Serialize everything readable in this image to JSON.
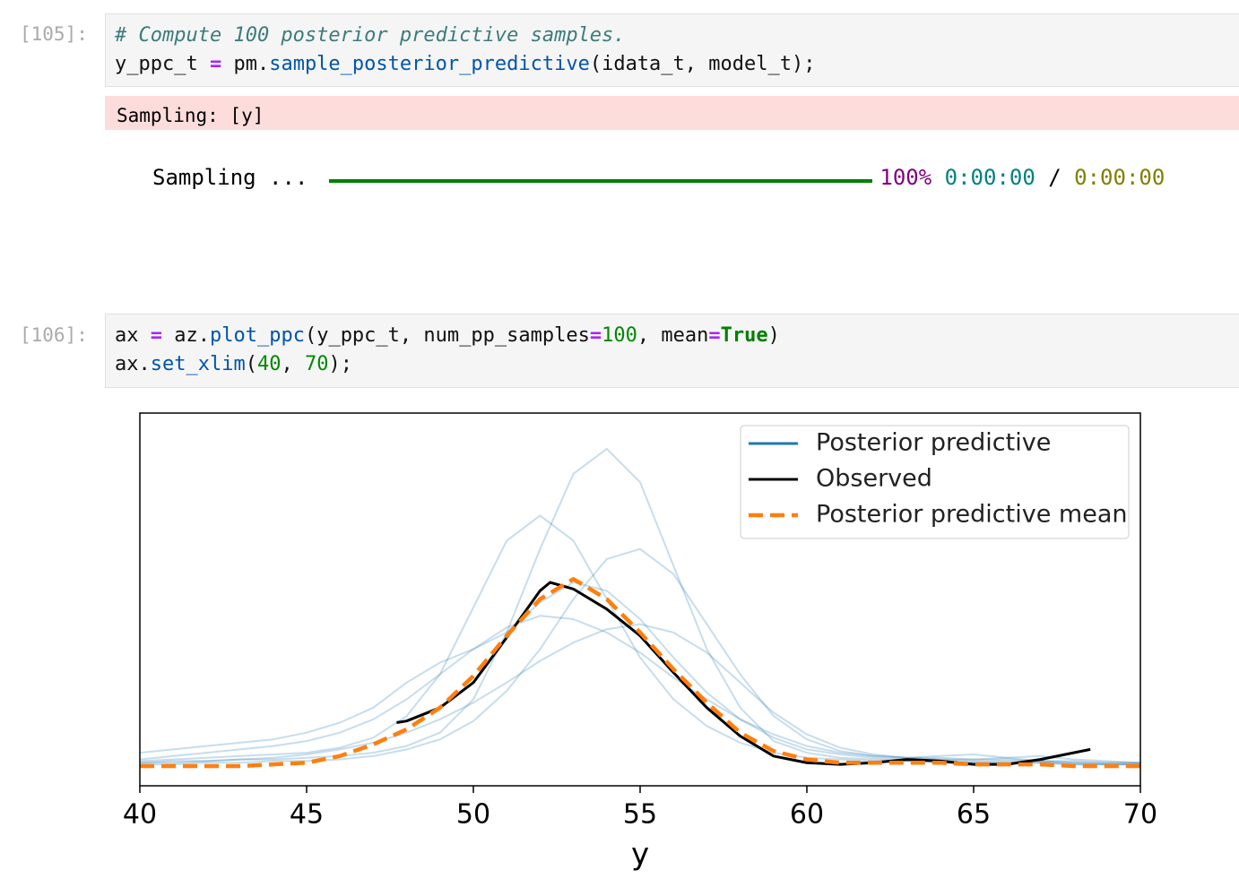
{
  "cells": [
    {
      "prompt": "[105]:",
      "code": [
        [
          "# Compute 100 posterior predictive samples."
        ],
        [
          "y_ppc_t ",
          "=",
          " pm.",
          "sample_posterior_predictive",
          "(idata_t, model_t);"
        ]
      ],
      "stderr": "Sampling: [y]",
      "progress": {
        "label": "Sampling ...",
        "percent": "100%",
        "elapsed": "0:00:00",
        "separator": "/",
        "remaining": "0:00:00"
      }
    },
    {
      "prompt": "[106]:",
      "code": [
        [
          "ax ",
          "=",
          " az.",
          "plot_ppc",
          "(y_ppc_t, num_pp_samples",
          "=",
          "100",
          ", mean",
          "=",
          "True",
          ")"
        ],
        [
          "ax.",
          "set_xlim",
          "(",
          "40",
          ", ",
          "70",
          ");"
        ]
      ]
    }
  ],
  "chart_data": {
    "type": "line",
    "xlabel": "y",
    "xlim": [
      40,
      70
    ],
    "xticks": [
      40,
      45,
      50,
      55,
      60,
      65,
      70
    ],
    "ylim": [
      -0.0118,
      0.2114
    ],
    "legend": "upper right",
    "series": [
      {
        "name": "Posterior predictive",
        "color": "#1f77b4",
        "x": [
          40,
          41,
          42,
          43,
          44,
          45,
          46,
          47,
          48,
          49,
          50,
          51,
          52,
          53,
          54,
          55,
          56,
          57,
          58,
          59,
          60,
          61,
          62,
          63,
          64,
          65,
          66,
          67,
          68,
          69,
          70
        ],
        "samples": [
          [
            0.002,
            0.003,
            0.003,
            0.004,
            0.004,
            0.005,
            0.006,
            0.008,
            0.012,
            0.02,
            0.04,
            0.08,
            0.13,
            0.175,
            0.19,
            0.17,
            0.12,
            0.07,
            0.035,
            0.015,
            0.008,
            0.005,
            0.004,
            0.003,
            0.003,
            0.002,
            0.002,
            0.002,
            0.001,
            0.001,
            0.001
          ],
          [
            0.004,
            0.006,
            0.008,
            0.01,
            0.012,
            0.015,
            0.02,
            0.028,
            0.04,
            0.055,
            0.07,
            0.083,
            0.09,
            0.088,
            0.08,
            0.068,
            0.053,
            0.04,
            0.028,
            0.019,
            0.012,
            0.008,
            0.006,
            0.005,
            0.005,
            0.004,
            0.004,
            0.003,
            0.003,
            0.002,
            0.002
          ],
          [
            0.001,
            0.001,
            0.002,
            0.002,
            0.003,
            0.003,
            0.004,
            0.006,
            0.01,
            0.016,
            0.027,
            0.045,
            0.07,
            0.1,
            0.124,
            0.13,
            0.115,
            0.085,
            0.055,
            0.03,
            0.016,
            0.009,
            0.006,
            0.005,
            0.006,
            0.007,
            0.005,
            0.003,
            0.002,
            0.001,
            0.001
          ],
          [
            0.003,
            0.004,
            0.005,
            0.006,
            0.007,
            0.008,
            0.011,
            0.017,
            0.03,
            0.055,
            0.095,
            0.135,
            0.15,
            0.135,
            0.1,
            0.065,
            0.04,
            0.024,
            0.014,
            0.008,
            0.005,
            0.004,
            0.003,
            0.003,
            0.002,
            0.002,
            0.002,
            0.002,
            0.001,
            0.001,
            0.001
          ],
          [
            0.008,
            0.01,
            0.012,
            0.014,
            0.016,
            0.02,
            0.026,
            0.035,
            0.05,
            0.062,
            0.07,
            0.08,
            0.098,
            0.11,
            0.105,
            0.088,
            0.065,
            0.044,
            0.028,
            0.017,
            0.01,
            0.007,
            0.005,
            0.004,
            0.004,
            0.003,
            0.003,
            0.003,
            0.002,
            0.002,
            0.002
          ],
          [
            0.002,
            0.002,
            0.003,
            0.004,
            0.005,
            0.007,
            0.01,
            0.014,
            0.02,
            0.028,
            0.038,
            0.05,
            0.063,
            0.074,
            0.082,
            0.085,
            0.08,
            0.068,
            0.05,
            0.032,
            0.019,
            0.011,
            0.007,
            0.005,
            0.004,
            0.004,
            0.005,
            0.006,
            0.004,
            0.003,
            0.002
          ]
        ]
      },
      {
        "name": "Observed",
        "color": "#000000",
        "x": [
          47.7,
          48,
          49,
          50,
          51,
          52,
          52.3,
          53,
          54,
          55,
          56,
          57,
          58,
          59,
          60,
          61,
          62,
          63,
          64,
          65,
          66,
          67,
          68,
          68.5
        ],
        "values": [
          0.026,
          0.027,
          0.035,
          0.05,
          0.077,
          0.105,
          0.11,
          0.106,
          0.094,
          0.078,
          0.056,
          0.035,
          0.018,
          0.006,
          0.002,
          0.001,
          0.002,
          0.004,
          0.003,
          0.001,
          0.001,
          0.004,
          0.008,
          0.01
        ]
      },
      {
        "name": "Posterior predictive mean",
        "color": "#ff7f0e",
        "dashed": true,
        "x": [
          40,
          41,
          42,
          43,
          44,
          45,
          46,
          47,
          48,
          49,
          50,
          51,
          52,
          53,
          54,
          55,
          56,
          57,
          58,
          59,
          60,
          61,
          62,
          63,
          64,
          65,
          66,
          67,
          68,
          69,
          70
        ],
        "values": [
          0,
          0,
          0,
          0,
          0.001,
          0.002,
          0.006,
          0.013,
          0.022,
          0.035,
          0.054,
          0.078,
          0.1,
          0.112,
          0.1,
          0.08,
          0.058,
          0.038,
          0.02,
          0.009,
          0.004,
          0.002,
          0.002,
          0.002,
          0.002,
          0.001,
          0.001,
          0.001,
          0,
          0,
          0
        ]
      }
    ]
  }
}
